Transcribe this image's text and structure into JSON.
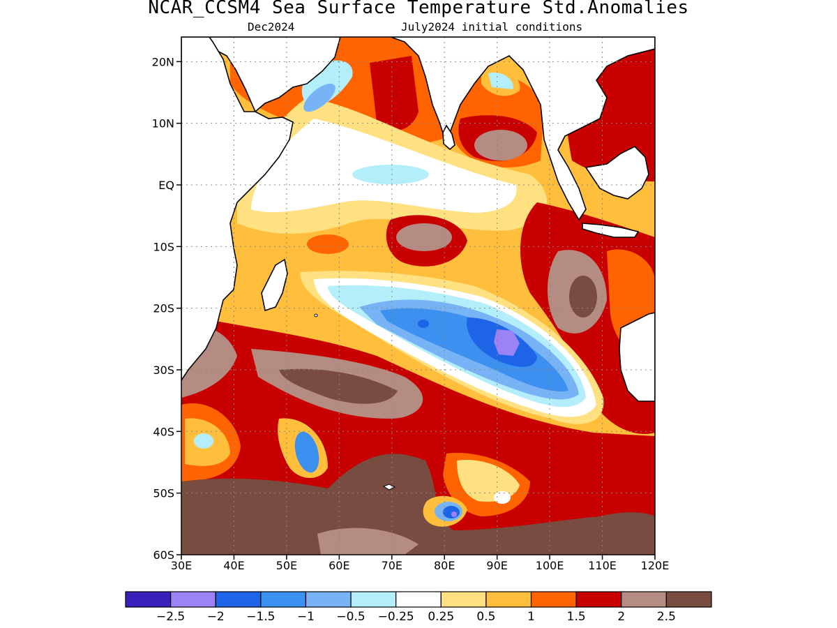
{
  "title": "NCAR_CCSM4 Sea Surface Temperature Std.Anomalies",
  "subtitle_left": "Dec2024",
  "subtitle_right": "July2024 initial conditions",
  "map": {
    "lon_range": [
      30,
      120
    ],
    "lat_range": [
      -60,
      24
    ],
    "x_ticks": [
      "30E",
      "40E",
      "50E",
      "60E",
      "70E",
      "80E",
      "90E",
      "100E",
      "110E",
      "120E"
    ],
    "y_ticks": [
      "20N",
      "10N",
      "EQ",
      "10S",
      "20S",
      "30S",
      "40S",
      "50S",
      "60S"
    ],
    "grid": "dotted"
  },
  "colorbar": {
    "colors": [
      "#3a1fba",
      "#9b82f5",
      "#1e64e6",
      "#3c91f0",
      "#78b4f5",
      "#b4eefa",
      "#ffffff",
      "#ffe182",
      "#ffbe3c",
      "#ff6400",
      "#c80000",
      "#b48c82",
      "#784c40"
    ],
    "labels": [
      "−2.5",
      "−2",
      "−1.5",
      "−1",
      "−0.5",
      "−0.25",
      "0.25",
      "0.5",
      "1",
      "1.5",
      "2",
      "2.5"
    ]
  }
}
